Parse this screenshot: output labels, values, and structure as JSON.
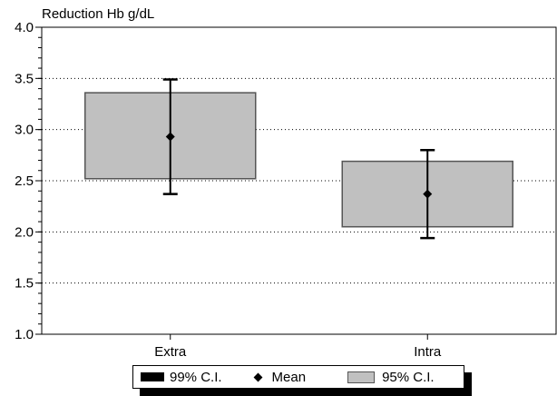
{
  "chart_data": {
    "type": "box",
    "ylabel": "Reduction Hb g/dL",
    "ylim": [
      1.0,
      4.0
    ],
    "yticks": [
      "1.0",
      "1.5",
      "2.0",
      "2.5",
      "3.0",
      "3.5",
      "4.0"
    ],
    "grid": "horizontal dotted",
    "categories": [
      "Extra",
      "Intra"
    ],
    "boxes": [
      {
        "category": "Extra",
        "ci95_low": 2.52,
        "ci95_high": 3.36,
        "ci99_low": 2.37,
        "ci99_high": 3.49,
        "mean": 2.93
      },
      {
        "category": "Intra",
        "ci95_low": 2.05,
        "ci95_high": 2.69,
        "ci99_low": 1.94,
        "ci99_high": 2.8,
        "mean": 2.37
      }
    ],
    "legend": {
      "placement": "bottom",
      "items": [
        "99% C.I.",
        "Mean",
        "95% C.I."
      ]
    },
    "colors": {
      "box_fill": "#c0c0c0",
      "box_stroke": "#555555",
      "whisker": "#000000",
      "mean": "#000000"
    }
  }
}
